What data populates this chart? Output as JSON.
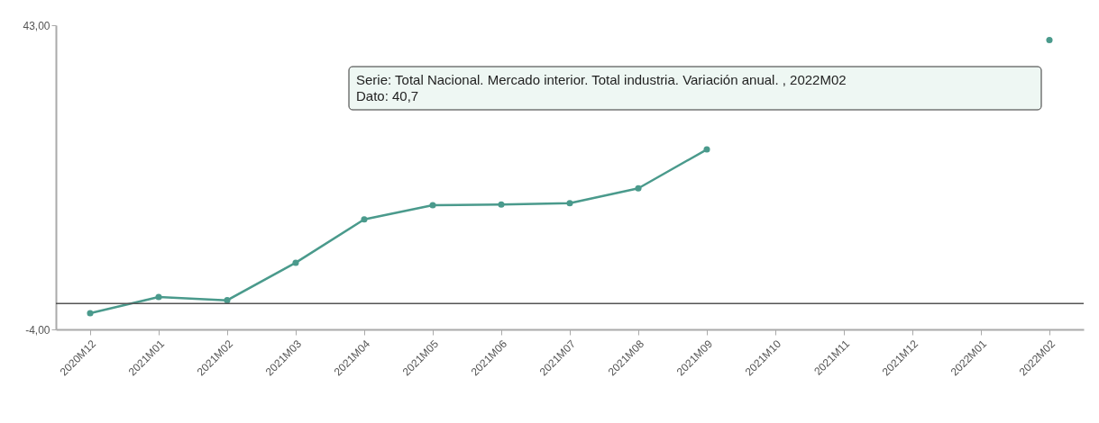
{
  "chart_data": {
    "type": "line",
    "categories": [
      "2020M12",
      "2021M01",
      "2021M02",
      "2021M03",
      "2021M04",
      "2021M05",
      "2021M06",
      "2021M07",
      "2021M08",
      "2021M09",
      "2021M10",
      "2021M11",
      "2021M12",
      "2022M01",
      "2022M02"
    ],
    "series": [
      {
        "color": "#4a9a8c",
        "values": [
          -1.5,
          1.0,
          0.5,
          6.3,
          13.0,
          15.2,
          15.3,
          15.5,
          17.8,
          23.8,
          null,
          null,
          null,
          null,
          40.7
        ]
      }
    ],
    "ylim": [
      -4,
      43
    ],
    "yticks": [
      {
        "value": -4,
        "label": "-4,00"
      },
      {
        "value": 43,
        "label": "43,00"
      }
    ],
    "ref_lines": [
      {
        "axis": "y",
        "value": 0,
        "color": "#555555"
      }
    ],
    "annotations": [
      "Serie: Total Nacional. Mercado interior. Total industria. Variación anual. , 2022M02\nDato: 40,7"
    ],
    "line_style": "solid",
    "marker": "circle",
    "grid": false,
    "legend": false
  }
}
